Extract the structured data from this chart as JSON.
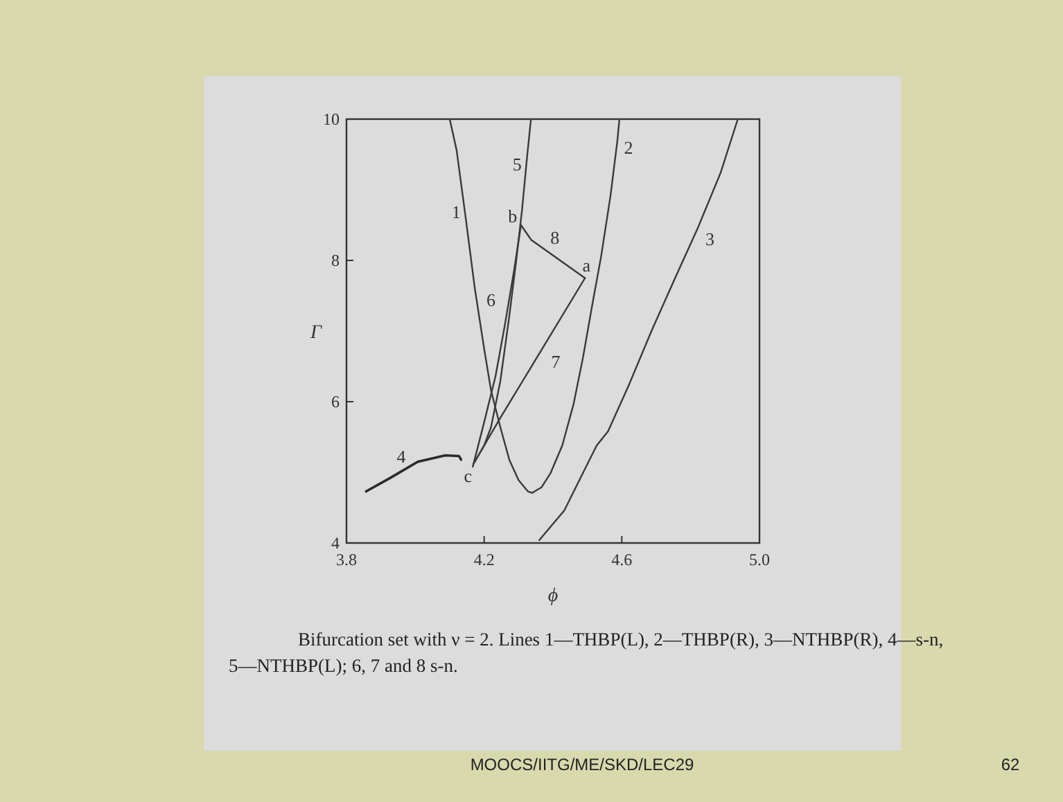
{
  "chart_data": {
    "type": "line",
    "xlabel": "ϕ",
    "ylabel": "Γ",
    "xlim": [
      3.8,
      5.0
    ],
    "ylim": [
      4,
      10
    ],
    "xticks": [
      3.8,
      4.2,
      4.6,
      {
        "value": 5.0,
        "label": "5.0"
      }
    ],
    "yticks": [
      4,
      6,
      8,
      10
    ],
    "grid": false,
    "marker": "none",
    "line_style": "solid",
    "series": [
      {
        "name": "1",
        "color": "#3a3a3a",
        "x": [
          4.1,
          4.12,
          4.147,
          4.173,
          4.2,
          4.22,
          4.247,
          4.273,
          4.3,
          4.327,
          4.34
        ],
        "values": [
          10,
          9.56,
          8.58,
          7.6,
          6.75,
          6.16,
          5.64,
          5.18,
          4.89,
          4.73,
          4.71
        ]
      },
      {
        "name": "2",
        "color": "#3a3a3a",
        "x": [
          4.34,
          4.367,
          4.393,
          4.427,
          4.46,
          4.487,
          4.513,
          4.54,
          4.567,
          4.587,
          4.593
        ],
        "values": [
          4.71,
          4.79,
          4.99,
          5.38,
          5.97,
          6.62,
          7.34,
          8.06,
          8.91,
          9.69,
          10
        ]
      },
      {
        "name": "3",
        "color": "#3a3a3a",
        "x": [
          4.36,
          4.433,
          4.487,
          4.527,
          4.56,
          4.62,
          4.687,
          4.753,
          4.82,
          4.887,
          4.937
        ],
        "values": [
          4.04,
          4.46,
          4.99,
          5.38,
          5.58,
          6.23,
          7.01,
          7.73,
          8.45,
          9.24,
          10
        ]
      },
      {
        "name": "4",
        "color": "#2a2a2a",
        "x": [
          3.857,
          3.927,
          4.007,
          4.087,
          4.127,
          4.133
        ],
        "values": [
          4.73,
          4.92,
          5.15,
          5.24,
          5.23,
          5.18
        ]
      },
      {
        "name": "5",
        "color": "#3a3a3a",
        "x": [
          4.173,
          4.2,
          4.22,
          4.247,
          4.273,
          4.293,
          4.31,
          4.324,
          4.336
        ],
        "values": [
          5.15,
          5.38,
          5.64,
          6.29,
          7.21,
          7.99,
          8.71,
          9.43,
          10
        ]
      },
      {
        "name": "6",
        "color": "#3a3a3a",
        "x": [
          4.167,
          4.2,
          4.233,
          4.26,
          4.287,
          4.307
        ],
        "values": [
          5.08,
          5.71,
          6.36,
          7.08,
          7.86,
          8.5
        ]
      },
      {
        "name": "7",
        "color": "#3a3a3a",
        "x": [
          4.169,
          4.247,
          4.493
        ],
        "values": [
          5.12,
          5.77,
          7.75
        ]
      },
      {
        "name": "8",
        "color": "#3a3a3a",
        "x": [
          4.307,
          4.337,
          4.493
        ],
        "values": [
          8.5,
          8.29,
          7.75
        ]
      }
    ],
    "annotations": [
      {
        "text": "a",
        "x": 4.493,
        "y": 7.75
      },
      {
        "text": "b",
        "x": 4.307,
        "y": 8.5
      },
      {
        "text": "c",
        "x": 4.169,
        "y": 5.12
      },
      "Bifurcation set with ν = 2. Lines 1—THBP(L), 2—THBP(R), 3—NTHBP(R), 4—s-n, 5—NTHBP(L); 6, 7 and 8 s-n.",
      "MOOCS/IITG/ME/SKD/LEC29",
      "62"
    ]
  }
}
